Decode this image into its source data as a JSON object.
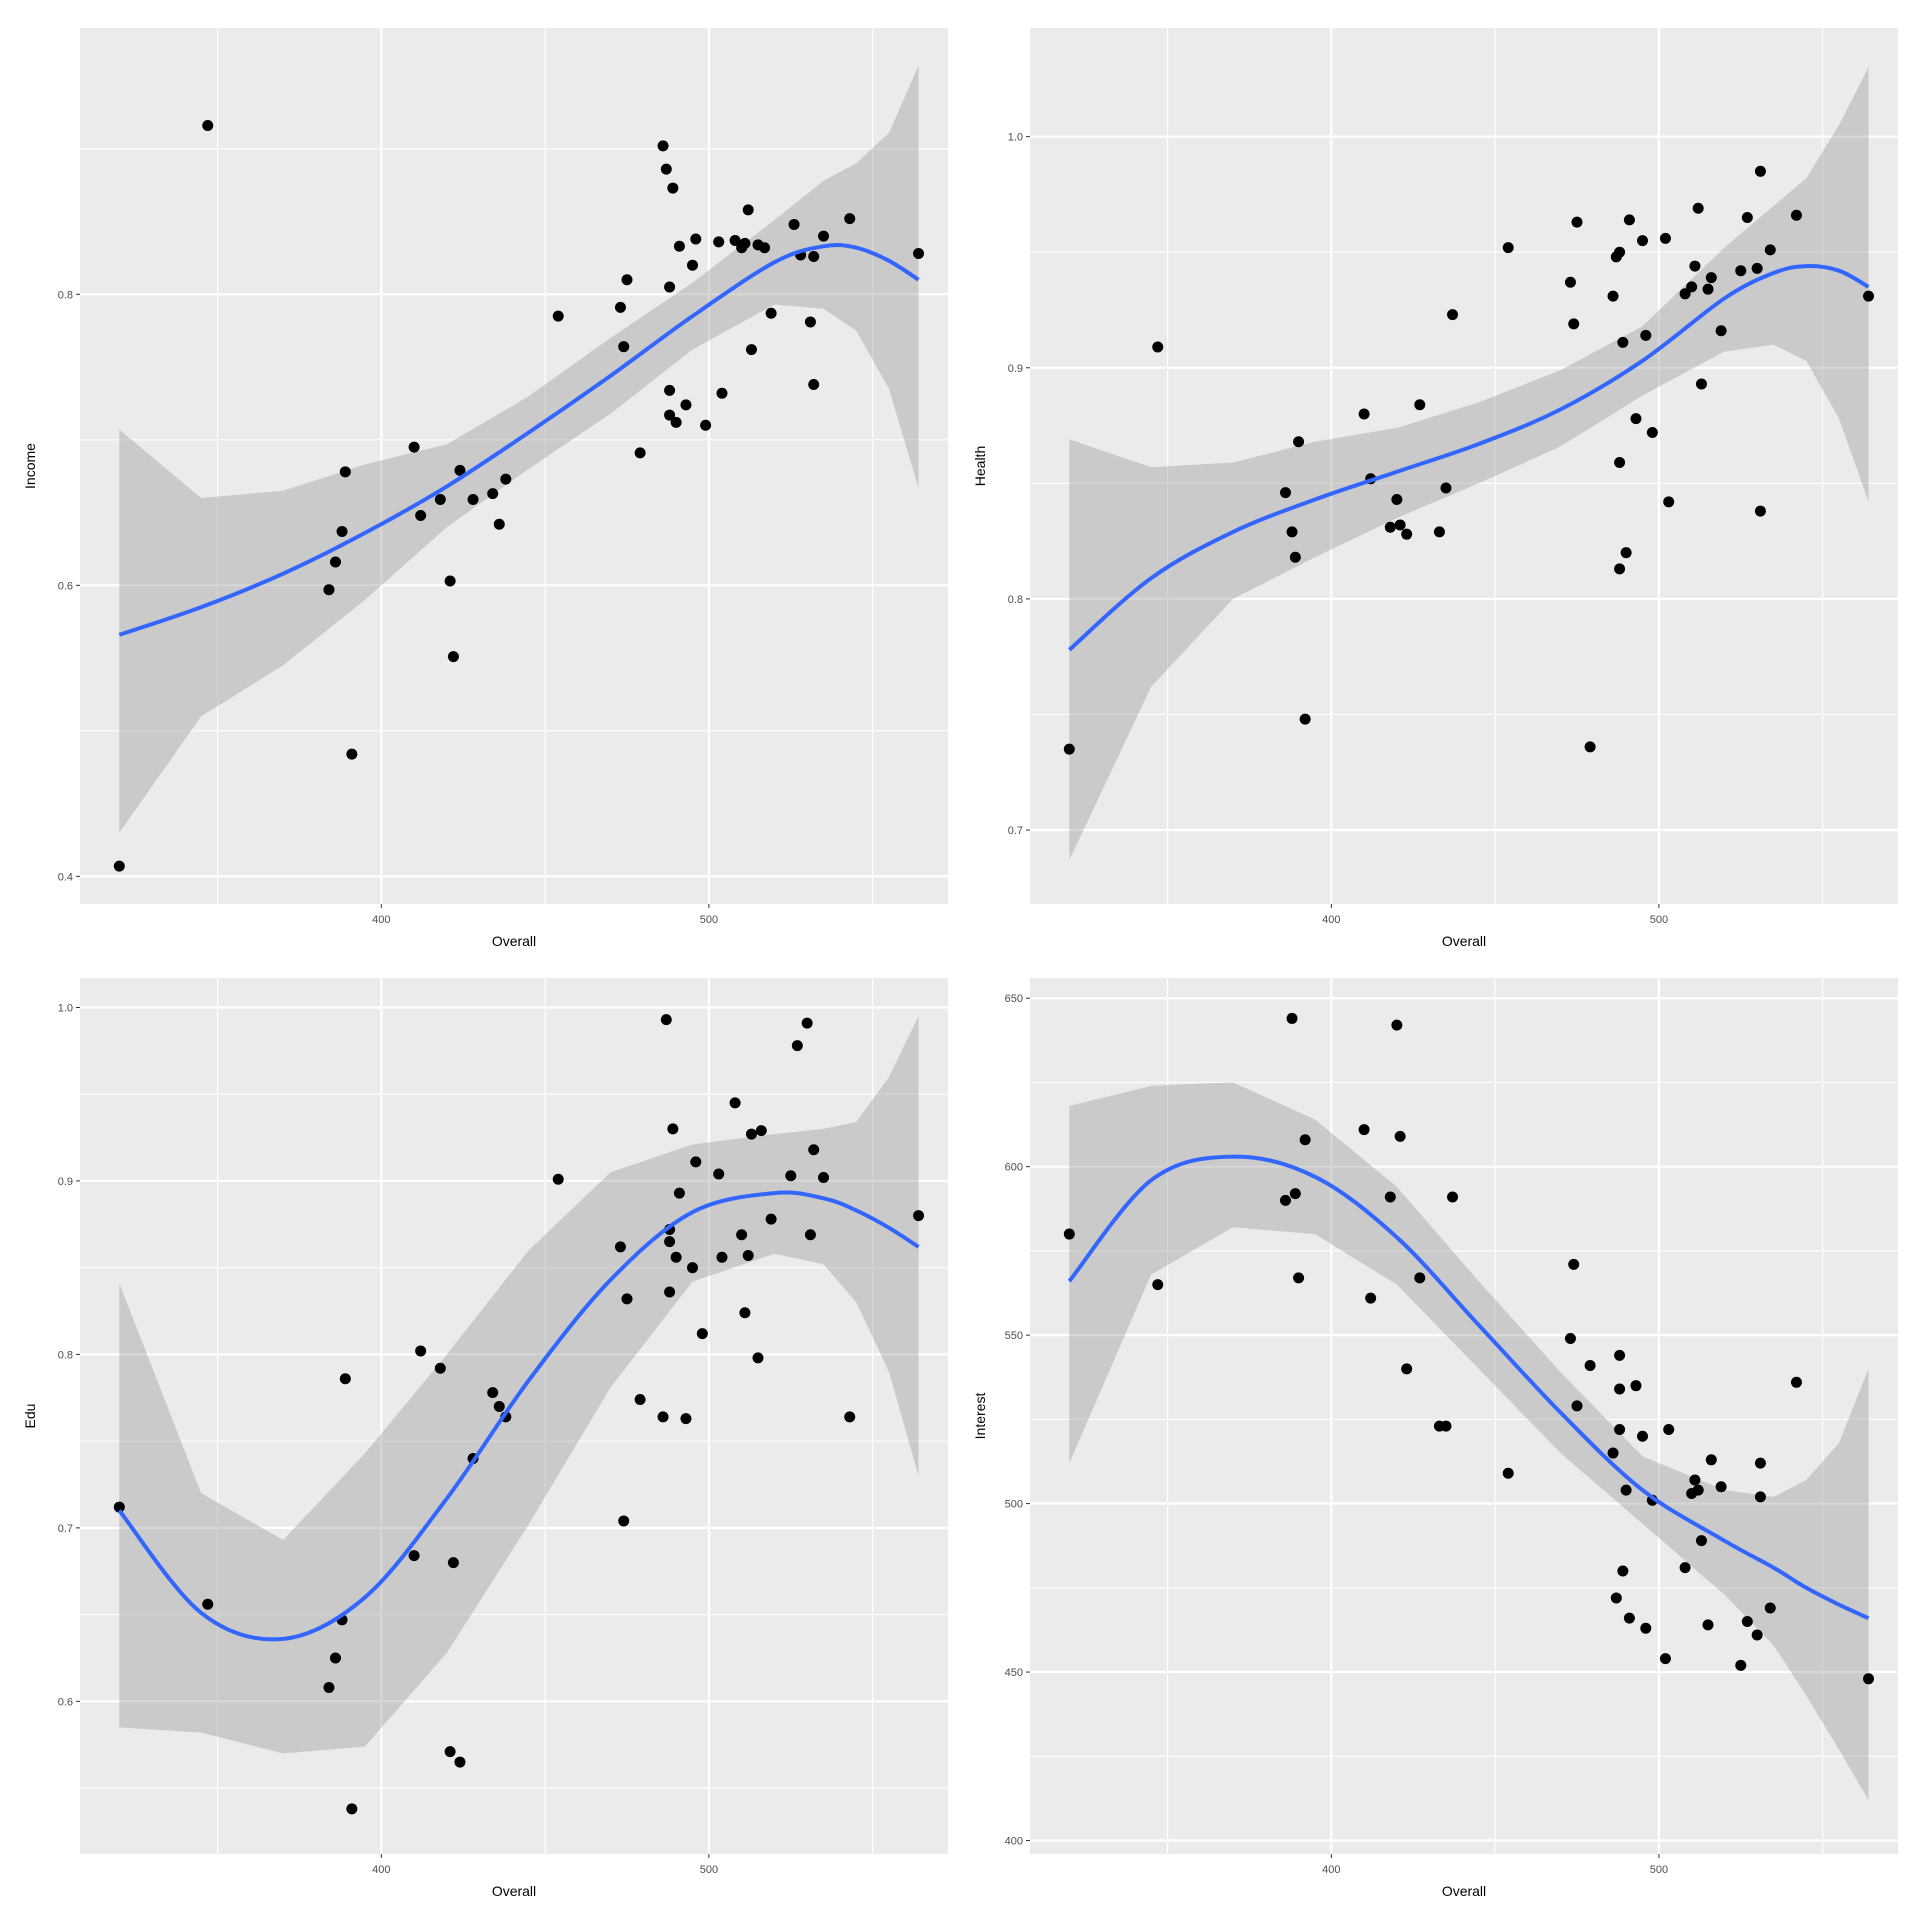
{
  "chart_data": [
    {
      "type": "scatter",
      "xlabel": "Overall",
      "ylabel": "Income",
      "xlim": [
        308,
        573
      ],
      "ylim": [
        0.381,
        0.983
      ],
      "x_ticks": [
        400,
        500
      ],
      "y_ticks": [
        0.4,
        0.6,
        0.8
      ],
      "y_tick_labels": [
        "0.4",
        "0.6",
        "0.8"
      ],
      "grid": true,
      "points": [
        [
          320,
          0.407
        ],
        [
          347,
          0.916
        ],
        [
          384,
          0.597
        ],
        [
          386,
          0.616
        ],
        [
          388,
          0.637
        ],
        [
          389,
          0.678
        ],
        [
          391,
          0.484
        ],
        [
          410,
          0.695
        ],
        [
          412,
          0.648
        ],
        [
          418,
          0.659
        ],
        [
          421,
          0.603
        ],
        [
          422,
          0.551
        ],
        [
          424,
          0.679
        ],
        [
          428,
          0.659
        ],
        [
          434,
          0.663
        ],
        [
          436,
          0.642
        ],
        [
          438,
          0.673
        ],
        [
          454,
          0.785
        ],
        [
          473,
          0.791
        ],
        [
          474,
          0.764
        ],
        [
          475,
          0.81
        ],
        [
          479,
          0.691
        ],
        [
          486,
          0.902
        ],
        [
          487,
          0.886
        ],
        [
          488,
          0.805
        ],
        [
          488,
          0.734
        ],
        [
          488,
          0.717
        ],
        [
          489,
          0.873
        ],
        [
          490,
          0.712
        ],
        [
          491,
          0.833
        ],
        [
          493,
          0.724
        ],
        [
          495,
          0.82
        ],
        [
          496,
          0.838
        ],
        [
          499,
          0.71
        ],
        [
          503,
          0.836
        ],
        [
          504,
          0.732
        ],
        [
          508,
          0.837
        ],
        [
          510,
          0.832
        ],
        [
          511,
          0.835
        ],
        [
          512,
          0.858
        ],
        [
          513,
          0.762
        ],
        [
          515,
          0.834
        ],
        [
          517,
          0.832
        ],
        [
          519,
          0.787
        ],
        [
          526,
          0.848
        ],
        [
          528,
          0.827
        ],
        [
          531,
          0.781
        ],
        [
          532,
          0.738
        ],
        [
          532,
          0.826
        ],
        [
          535,
          0.84
        ],
        [
          543,
          0.852
        ],
        [
          564,
          0.828
        ]
      ],
      "smooth": {
        "x": [
          320,
          345,
          370,
          395,
          420,
          445,
          470,
          495,
          520,
          535,
          545,
          555,
          564
        ],
        "y": [
          0.566,
          0.585,
          0.608,
          0.636,
          0.668,
          0.705,
          0.744,
          0.785,
          0.822,
          0.833,
          0.832,
          0.823,
          0.81
        ],
        "lower": [
          0.43,
          0.51,
          0.545,
          0.59,
          0.64,
          0.68,
          0.718,
          0.762,
          0.793,
          0.79,
          0.775,
          0.735,
          0.667
        ],
        "upper": [
          0.707,
          0.66,
          0.665,
          0.683,
          0.697,
          0.73,
          0.77,
          0.808,
          0.851,
          0.878,
          0.89,
          0.911,
          0.957
        ]
      }
    },
    {
      "type": "scatter",
      "xlabel": "Overall",
      "ylabel": "Health",
      "xlim": [
        308,
        573
      ],
      "ylim": [
        0.668,
        1.047
      ],
      "x_ticks": [
        400,
        500
      ],
      "y_ticks": [
        0.7,
        0.8,
        0.9,
        1.0
      ],
      "y_tick_labels": [
        "0.7",
        "0.8",
        "0.9",
        "1.0"
      ],
      "grid": true,
      "points": [
        [
          320,
          0.735
        ],
        [
          347,
          0.909
        ],
        [
          386,
          0.846
        ],
        [
          388,
          0.829
        ],
        [
          389,
          0.818
        ],
        [
          390,
          0.868
        ],
        [
          392,
          0.748
        ],
        [
          410,
          0.88
        ],
        [
          412,
          0.852
        ],
        [
          418,
          0.831
        ],
        [
          420,
          0.843
        ],
        [
          421,
          0.832
        ],
        [
          423,
          0.828
        ],
        [
          427,
          0.884
        ],
        [
          433,
          0.829
        ],
        [
          435,
          0.848
        ],
        [
          437,
          0.923
        ],
        [
          454,
          0.952
        ],
        [
          473,
          0.937
        ],
        [
          474,
          0.919
        ],
        [
          475,
          0.963
        ],
        [
          479,
          0.736
        ],
        [
          486,
          0.931
        ],
        [
          487,
          0.948
        ],
        [
          488,
          0.95
        ],
        [
          488,
          0.859
        ],
        [
          488,
          0.813
        ],
        [
          489,
          0.911
        ],
        [
          490,
          0.82
        ],
        [
          491,
          0.964
        ],
        [
          493,
          0.878
        ],
        [
          495,
          0.955
        ],
        [
          496,
          0.914
        ],
        [
          498,
          0.872
        ],
        [
          502,
          0.956
        ],
        [
          503,
          0.842
        ],
        [
          508,
          0.932
        ],
        [
          510,
          0.935
        ],
        [
          511,
          0.944
        ],
        [
          512,
          0.969
        ],
        [
          513,
          0.893
        ],
        [
          515,
          0.934
        ],
        [
          516,
          0.939
        ],
        [
          519,
          0.916
        ],
        [
          525,
          0.942
        ],
        [
          527,
          0.965
        ],
        [
          530,
          0.943
        ],
        [
          531,
          0.838
        ],
        [
          531,
          0.985
        ],
        [
          534,
          0.951
        ],
        [
          542,
          0.966
        ],
        [
          564,
          0.931
        ]
      ],
      "smooth": {
        "x": [
          320,
          345,
          370,
          395,
          420,
          445,
          470,
          495,
          520,
          535,
          545,
          555,
          564
        ],
        "y": [
          0.778,
          0.809,
          0.829,
          0.843,
          0.855,
          0.867,
          0.882,
          0.903,
          0.93,
          0.941,
          0.944,
          0.942,
          0.935
        ],
        "lower": [
          0.687,
          0.762,
          0.8,
          0.818,
          0.835,
          0.85,
          0.866,
          0.888,
          0.907,
          0.91,
          0.903,
          0.878,
          0.842
        ],
        "upper": [
          0.869,
          0.857,
          0.859,
          0.868,
          0.874,
          0.885,
          0.899,
          0.918,
          0.952,
          0.97,
          0.982,
          1.005,
          1.03
        ]
      }
    },
    {
      "type": "scatter",
      "xlabel": "Overall",
      "ylabel": "Edu",
      "xlim": [
        308,
        573
      ],
      "ylim": [
        0.512,
        1.017
      ],
      "x_ticks": [
        400,
        500
      ],
      "y_ticks": [
        0.6,
        0.7,
        0.8,
        0.9,
        1.0
      ],
      "y_tick_labels": [
        "0.6",
        "0.7",
        "0.8",
        "0.9",
        "1.0"
      ],
      "grid": true,
      "points": [
        [
          320,
          0.712
        ],
        [
          347,
          0.656
        ],
        [
          384,
          0.608
        ],
        [
          386,
          0.625
        ],
        [
          388,
          0.647
        ],
        [
          389,
          0.786
        ],
        [
          391,
          0.538
        ],
        [
          410,
          0.684
        ],
        [
          412,
          0.802
        ],
        [
          418,
          0.792
        ],
        [
          421,
          0.571
        ],
        [
          422,
          0.68
        ],
        [
          424,
          0.565
        ],
        [
          428,
          0.74
        ],
        [
          434,
          0.778
        ],
        [
          436,
          0.77
        ],
        [
          438,
          0.764
        ],
        [
          454,
          0.901
        ],
        [
          473,
          0.862
        ],
        [
          474,
          0.704
        ],
        [
          475,
          0.832
        ],
        [
          479,
          0.774
        ],
        [
          486,
          0.764
        ],
        [
          487,
          0.993
        ],
        [
          488,
          0.872
        ],
        [
          488,
          0.865
        ],
        [
          488,
          0.836
        ],
        [
          489,
          0.93
        ],
        [
          490,
          0.856
        ],
        [
          491,
          0.893
        ],
        [
          493,
          0.763
        ],
        [
          495,
          0.85
        ],
        [
          496,
          0.911
        ],
        [
          498,
          0.812
        ],
        [
          503,
          0.904
        ],
        [
          504,
          0.856
        ],
        [
          508,
          0.945
        ],
        [
          510,
          0.869
        ],
        [
          511,
          0.824
        ],
        [
          512,
          0.857
        ],
        [
          513,
          0.927
        ],
        [
          515,
          0.798
        ],
        [
          516,
          0.929
        ],
        [
          519,
          0.878
        ],
        [
          525,
          0.903
        ],
        [
          527,
          0.978
        ],
        [
          530,
          0.991
        ],
        [
          531,
          0.869
        ],
        [
          532,
          0.918
        ],
        [
          535,
          0.902
        ],
        [
          543,
          0.764
        ],
        [
          564,
          0.88
        ]
      ],
      "smooth": {
        "x": [
          320,
          345,
          370,
          395,
          420,
          445,
          470,
          495,
          520,
          535,
          545,
          555,
          564
        ],
        "y": [
          0.71,
          0.651,
          0.636,
          0.66,
          0.717,
          0.785,
          0.843,
          0.882,
          0.893,
          0.89,
          0.883,
          0.873,
          0.862
        ],
        "lower": [
          0.585,
          0.582,
          0.57,
          0.574,
          0.628,
          0.702,
          0.781,
          0.842,
          0.858,
          0.852,
          0.83,
          0.79,
          0.73
        ],
        "upper": [
          0.841,
          0.72,
          0.693,
          0.743,
          0.8,
          0.86,
          0.905,
          0.921,
          0.927,
          0.93,
          0.934,
          0.96,
          0.995
        ]
      }
    },
    {
      "type": "scatter",
      "xlabel": "Overall",
      "ylabel": "Interest",
      "xlim": [
        308,
        573
      ],
      "ylim": [
        396,
        656
      ],
      "x_ticks": [
        400,
        500
      ],
      "y_ticks": [
        400,
        450,
        500,
        550,
        600,
        650
      ],
      "y_tick_labels": [
        "400",
        "450",
        "500",
        "550",
        "600",
        "650"
      ],
      "grid": true,
      "points": [
        [
          320,
          580
        ],
        [
          347,
          565
        ],
        [
          386,
          590
        ],
        [
          388,
          644
        ],
        [
          389,
          592
        ],
        [
          390,
          567
        ],
        [
          392,
          608
        ],
        [
          410,
          611
        ],
        [
          412,
          561
        ],
        [
          418,
          591
        ],
        [
          420,
          642
        ],
        [
          421,
          609
        ],
        [
          423,
          540
        ],
        [
          427,
          567
        ],
        [
          433,
          523
        ],
        [
          435,
          523
        ],
        [
          437,
          591
        ],
        [
          454,
          509
        ],
        [
          473,
          549
        ],
        [
          474,
          571
        ],
        [
          475,
          529
        ],
        [
          479,
          541
        ],
        [
          486,
          515
        ],
        [
          487,
          472
        ],
        [
          488,
          544
        ],
        [
          488,
          534
        ],
        [
          488,
          522
        ],
        [
          489,
          480
        ],
        [
          490,
          504
        ],
        [
          491,
          466
        ],
        [
          493,
          535
        ],
        [
          495,
          520
        ],
        [
          496,
          463
        ],
        [
          498,
          501
        ],
        [
          502,
          454
        ],
        [
          503,
          522
        ],
        [
          508,
          481
        ],
        [
          510,
          503
        ],
        [
          511,
          507
        ],
        [
          512,
          504
        ],
        [
          513,
          489
        ],
        [
          515,
          464
        ],
        [
          516,
          513
        ],
        [
          519,
          505
        ],
        [
          525,
          452
        ],
        [
          527,
          465
        ],
        [
          530,
          461
        ],
        [
          531,
          502
        ],
        [
          531,
          512
        ],
        [
          534,
          469
        ],
        [
          542,
          536
        ],
        [
          564,
          448
        ]
      ],
      "smooth": {
        "x": [
          320,
          345,
          370,
          395,
          420,
          445,
          470,
          495,
          520,
          535,
          545,
          555,
          564
        ],
        "y": [
          566,
          596,
          603,
          597,
          579,
          553,
          527,
          504,
          489,
          481,
          475,
          470,
          466
        ],
        "lower": [
          512,
          568,
          582,
          580,
          565,
          540,
          515,
          494,
          473,
          458,
          443,
          427,
          412
        ],
        "upper": [
          618,
          624,
          625,
          614,
          594,
          566,
          539,
          514,
          504,
          502,
          507,
          518,
          540
        ]
      }
    }
  ]
}
